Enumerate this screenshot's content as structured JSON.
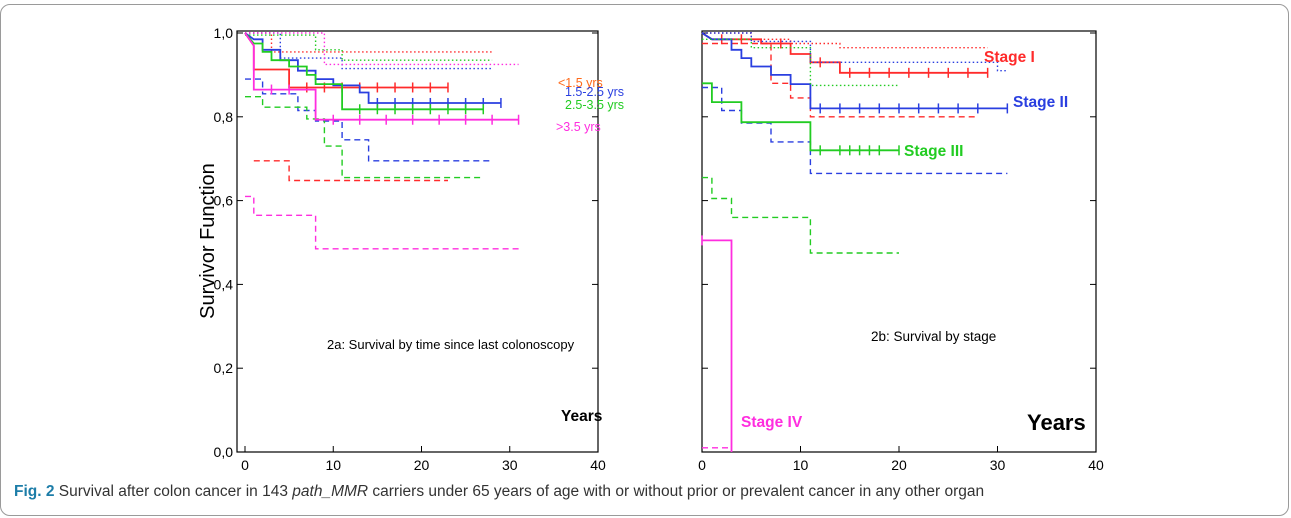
{
  "chart_data": [
    {
      "panel": "2a",
      "type": "line",
      "subtitle": "2a: Survival by time since last colonoscopy",
      "xlabel": "Years",
      "ylabel": "Survivor Function",
      "xlim": [
        0,
        40
      ],
      "ylim": [
        0.0,
        1.0
      ],
      "xticks": [
        "0",
        "10",
        "20",
        "30",
        "40"
      ],
      "yticks": [
        "0,0",
        "0,2",
        "0,4",
        "0,6",
        "0,8",
        "1,0"
      ],
      "series": [
        {
          "name": "<1.5 yrs",
          "color": "#ff6a1a",
          "style": "label"
        },
        {
          "name": "",
          "color": "#ff2b2b",
          "style": "solid",
          "points": [
            [
              0,
              1.0
            ],
            [
              1,
              0.97
            ],
            [
              1,
              0.913
            ],
            [
              5,
              0.913
            ],
            [
              5,
              0.87
            ],
            [
              23,
              0.87
            ]
          ],
          "censor": [
            7,
            9,
            11,
            13,
            15,
            17,
            19,
            21,
            23
          ]
        },
        {
          "name": "",
          "color": "#ff2b2b",
          "style": "dotted",
          "points": [
            [
              0,
              1.0
            ],
            [
              3,
              1.0
            ],
            [
              3,
              0.955
            ],
            [
              28,
              0.955
            ]
          ]
        },
        {
          "name": "",
          "color": "#ff2b2b",
          "style": "dashed",
          "points": [
            [
              1,
              0.695
            ],
            [
              5,
              0.695
            ],
            [
              5,
              0.648
            ],
            [
              23,
              0.648
            ]
          ]
        },
        {
          "name": "1.5-2.5 yrs",
          "color": "#2a3fe0",
          "style": "solid",
          "points": [
            [
              0,
              1.0
            ],
            [
              1,
              0.985
            ],
            [
              2,
              0.985
            ],
            [
              2,
              0.96
            ],
            [
              4,
              0.96
            ],
            [
              4,
              0.935
            ],
            [
              6,
              0.935
            ],
            [
              6,
              0.91
            ],
            [
              8,
              0.91
            ],
            [
              8,
              0.89
            ],
            [
              10,
              0.89
            ],
            [
              10,
              0.875
            ],
            [
              13,
              0.875
            ],
            [
              13,
              0.858
            ],
            [
              14,
              0.858
            ],
            [
              14,
              0.833
            ],
            [
              29,
              0.833
            ]
          ],
          "censor": [
            15,
            17,
            19,
            21,
            23,
            25,
            27,
            29
          ]
        },
        {
          "name": "",
          "color": "#2a3fe0",
          "style": "dotted",
          "points": [
            [
              0,
              1.0
            ],
            [
              4,
              1.0
            ],
            [
              4,
              0.94
            ],
            [
              11,
              0.94
            ],
            [
              11,
              0.915
            ],
            [
              28,
              0.915
            ]
          ]
        },
        {
          "name": "",
          "color": "#2a3fe0",
          "style": "dashed",
          "points": [
            [
              0,
              0.89
            ],
            [
              2,
              0.89
            ],
            [
              2,
              0.855
            ],
            [
              6,
              0.855
            ],
            [
              6,
              0.815
            ],
            [
              8,
              0.815
            ],
            [
              8,
              0.79
            ],
            [
              11,
              0.79
            ],
            [
              11,
              0.745
            ],
            [
              14,
              0.745
            ],
            [
              14,
              0.695
            ],
            [
              28,
              0.695
            ]
          ]
        },
        {
          "name": "2.5-3.5 yrs",
          "color": "#22cc22",
          "style": "solid",
          "points": [
            [
              0,
              1.0
            ],
            [
              1,
              0.975
            ],
            [
              2,
              0.975
            ],
            [
              2,
              0.955
            ],
            [
              3,
              0.955
            ],
            [
              3,
              0.935
            ],
            [
              5,
              0.935
            ],
            [
              5,
              0.92
            ],
            [
              7,
              0.92
            ],
            [
              7,
              0.9
            ],
            [
              8,
              0.9
            ],
            [
              8,
              0.878
            ],
            [
              11,
              0.878
            ],
            [
              11,
              0.818
            ],
            [
              27,
              0.818
            ]
          ],
          "censor": [
            13,
            15,
            17,
            19,
            21,
            23,
            25,
            27
          ]
        },
        {
          "name": "",
          "color": "#22cc22",
          "style": "dotted",
          "points": [
            [
              0,
              0.995
            ],
            [
              8,
              0.995
            ],
            [
              8,
              0.96
            ],
            [
              11,
              0.96
            ],
            [
              11,
              0.935
            ],
            [
              28,
              0.935
            ]
          ]
        },
        {
          "name": "",
          "color": "#22cc22",
          "style": "dashed",
          "points": [
            [
              0,
              0.848
            ],
            [
              2,
              0.848
            ],
            [
              2,
              0.823
            ],
            [
              7,
              0.823
            ],
            [
              7,
              0.795
            ],
            [
              9,
              0.795
            ],
            [
              9,
              0.73
            ],
            [
              11,
              0.73
            ],
            [
              11,
              0.655
            ],
            [
              27,
              0.655
            ]
          ]
        },
        {
          "name": ">3.5 yrs",
          "color": "#ff2ddf",
          "style": "solid",
          "points": [
            [
              0,
              1.0
            ],
            [
              1,
              0.97
            ],
            [
              1,
              0.865
            ],
            [
              8,
              0.865
            ],
            [
              8,
              0.793
            ],
            [
              31,
              0.793
            ]
          ],
          "censor": [
            3,
            5,
            10,
            13,
            16,
            19,
            22,
            25,
            28,
            31
          ]
        },
        {
          "name": "",
          "color": "#ff2ddf",
          "style": "dotted",
          "points": [
            [
              0,
              1.0
            ],
            [
              9,
              1.0
            ],
            [
              9,
              0.925
            ],
            [
              31,
              0.925
            ]
          ]
        },
        {
          "name": "",
          "color": "#ff2ddf",
          "style": "dashed",
          "points": [
            [
              0,
              0.61
            ],
            [
              1,
              0.61
            ],
            [
              1,
              0.565
            ],
            [
              8,
              0.565
            ],
            [
              8,
              0.485
            ],
            [
              31,
              0.485
            ]
          ]
        }
      ]
    },
    {
      "panel": "2b",
      "type": "line",
      "subtitle": "2b: Survival by stage",
      "xlabel": "Years",
      "ylabel": "",
      "xlim": [
        0,
        40
      ],
      "ylim": [
        0.0,
        1.0
      ],
      "xticks": [
        "0",
        "10",
        "20",
        "30",
        "40"
      ],
      "yticks": [],
      "series": [
        {
          "name": "Stage I",
          "color": "#ff2b2b",
          "style": "solid",
          "points": [
            [
              0,
              1.0
            ],
            [
              1,
              0.985
            ],
            [
              6,
              0.985
            ],
            [
              6,
              0.975
            ],
            [
              9,
              0.975
            ],
            [
              9,
              0.95
            ],
            [
              11,
              0.95
            ],
            [
              11,
              0.93
            ],
            [
              14,
              0.93
            ],
            [
              14,
              0.905
            ],
            [
              29,
              0.905
            ]
          ],
          "censor": [
            2,
            4,
            8,
            12,
            15,
            17,
            19,
            21,
            23,
            25,
            27,
            29
          ]
        },
        {
          "name": "",
          "color": "#ff2b2b",
          "style": "dotted",
          "points": [
            [
              0,
              1.0
            ],
            [
              5,
              1.0
            ],
            [
              5,
              0.985
            ],
            [
              9,
              0.985
            ],
            [
              9,
              0.975
            ],
            [
              14,
              0.975
            ],
            [
              14,
              0.965
            ],
            [
              29,
              0.965
            ]
          ]
        },
        {
          "name": "",
          "color": "#ff2b2b",
          "style": "dashed",
          "points": [
            [
              0,
              0.975
            ],
            [
              7,
              0.975
            ],
            [
              7,
              0.88
            ],
            [
              9,
              0.88
            ],
            [
              9,
              0.845
            ],
            [
              11,
              0.845
            ],
            [
              11,
              0.8
            ],
            [
              28,
              0.8
            ]
          ]
        },
        {
          "name": "Stage II",
          "color": "#2a3fe0",
          "style": "solid",
          "points": [
            [
              0,
              1.0
            ],
            [
              1,
              0.985
            ],
            [
              3,
              0.985
            ],
            [
              3,
              0.96
            ],
            [
              4,
              0.96
            ],
            [
              4,
              0.94
            ],
            [
              5,
              0.94
            ],
            [
              5,
              0.92
            ],
            [
              7,
              0.92
            ],
            [
              7,
              0.9
            ],
            [
              9,
              0.9
            ],
            [
              9,
              0.878
            ],
            [
              11,
              0.878
            ],
            [
              11,
              0.82
            ],
            [
              31,
              0.82
            ]
          ],
          "censor": [
            12,
            14,
            16,
            18,
            20,
            22,
            24,
            26,
            28,
            31
          ]
        },
        {
          "name": "",
          "color": "#2a3fe0",
          "style": "dotted",
          "points": [
            [
              0,
              1.0
            ],
            [
              5,
              1.0
            ],
            [
              5,
              0.98
            ],
            [
              11,
              0.98
            ],
            [
              11,
              0.93
            ],
            [
              30,
              0.93
            ],
            [
              30,
              0.91
            ],
            [
              31,
              0.91
            ]
          ]
        },
        {
          "name": "",
          "color": "#2a3fe0",
          "style": "dashed",
          "points": [
            [
              0,
              0.87
            ],
            [
              2,
              0.87
            ],
            [
              2,
              0.815
            ],
            [
              4,
              0.815
            ],
            [
              4,
              0.785
            ],
            [
              7,
              0.785
            ],
            [
              7,
              0.74
            ],
            [
              11,
              0.74
            ],
            [
              11,
              0.665
            ],
            [
              31,
              0.665
            ]
          ]
        },
        {
          "name": "Stage III",
          "color": "#22cc22",
          "style": "solid",
          "points": [
            [
              0,
              0.88
            ],
            [
              1,
              0.88
            ],
            [
              1,
              0.835
            ],
            [
              4,
              0.835
            ],
            [
              4,
              0.787
            ],
            [
              11,
              0.787
            ],
            [
              11,
              0.72
            ],
            [
              20,
              0.72
            ]
          ],
          "censor": [
            12,
            14,
            15,
            16,
            17,
            18,
            20
          ]
        },
        {
          "name": "",
          "color": "#22cc22",
          "style": "dotted",
          "points": [
            [
              0,
              0.985
            ],
            [
              5,
              0.985
            ],
            [
              5,
              0.965
            ],
            [
              11,
              0.965
            ],
            [
              11,
              0.875
            ],
            [
              20,
              0.875
            ]
          ]
        },
        {
          "name": "",
          "color": "#22cc22",
          "style": "dashed",
          "points": [
            [
              0,
              0.655
            ],
            [
              1,
              0.655
            ],
            [
              1,
              0.605
            ],
            [
              3,
              0.605
            ],
            [
              3,
              0.56
            ],
            [
              11,
              0.56
            ],
            [
              11,
              0.475
            ],
            [
              20,
              0.475
            ]
          ]
        },
        {
          "name": "Stage IV",
          "color": "#ff2ddf",
          "style": "solid",
          "points": [
            [
              0,
              0.505
            ],
            [
              3,
              0.505
            ],
            [
              3,
              0.0
            ]
          ],
          "censor": [
            0
          ]
        },
        {
          "name": "",
          "color": "#ff2ddf",
          "style": "dashed",
          "points": [
            [
              0,
              0.01
            ],
            [
              3,
              0.01
            ]
          ]
        }
      ]
    }
  ],
  "caption": {
    "label": "Fig. 2",
    "text_before": " Survival after colon cancer in 143 ",
    "italic": "path_MMR",
    "text_after": " carriers under 65 years of age with or without prior or prevalent cancer in any other organ"
  }
}
